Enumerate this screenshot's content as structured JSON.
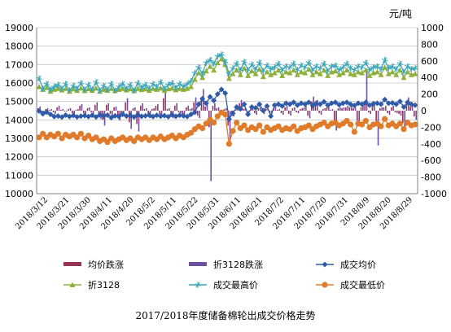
{
  "chart_data": {
    "type": "line",
    "title": "2017/2018年度储备棉轮出成交价格走势",
    "y2_unit": "元/吨",
    "xlabel": "",
    "ylabel": "",
    "ylim": [
      10000,
      19000
    ],
    "y2lim": [
      -1000,
      1000
    ],
    "y_ticks": [
      10000,
      11000,
      12000,
      13000,
      14000,
      15000,
      16000,
      17000,
      18000,
      19000
    ],
    "y2_ticks": [
      -1000,
      -800,
      -600,
      -400,
      -200,
      0,
      200,
      400,
      600,
      800,
      1000
    ],
    "x_labels": [
      "2018/3/12",
      "2018/3/21",
      "2018/3/30",
      "2018/4/11",
      "2018/4/20",
      "2018/5/2",
      "2018/5/11",
      "2018/5/22",
      "2018/5/31",
      "2018/6/11",
      "2018/6/21",
      "2018/7/2",
      "2018/7/11",
      "2018/7/20",
      "2018/7/31",
      "2018/8/9",
      "2018/8/20",
      "2018/8/29"
    ],
    "grid": true,
    "legend_position": "bottom",
    "series": [
      {
        "name": "均价跌涨",
        "type": "bar",
        "axis": "right",
        "color": "#993355",
        "values": [
          30,
          -20,
          20,
          10,
          -20,
          40,
          10,
          -10,
          20,
          -30,
          10,
          60,
          -30,
          30,
          -20,
          70,
          -70,
          -110,
          70,
          -40,
          40,
          -80,
          -30,
          100,
          -140,
          30,
          -160,
          60,
          20,
          -60,
          20,
          60,
          -40,
          150,
          20,
          -60,
          60,
          -20,
          -50,
          40,
          20,
          100,
          -60,
          160,
          50,
          -200,
          60,
          30,
          -30,
          20,
          -180,
          -50,
          10,
          90,
          20,
          -30,
          10,
          -30,
          30,
          -20,
          20,
          -30,
          30,
          10,
          -30,
          40,
          -40,
          30,
          -20,
          20,
          40,
          -60,
          110,
          80,
          -30,
          20,
          40,
          10,
          -150,
          30,
          30,
          40,
          40,
          30,
          -120,
          40,
          100,
          -20,
          70,
          -130,
          30,
          40,
          -30,
          40,
          -20,
          -40,
          -150,
          100,
          50,
          -70
        ]
      },
      {
        "name": "折3128跌涨",
        "type": "bar",
        "axis": "right",
        "color": "#7050a0",
        "values": [
          50,
          -30,
          30,
          20,
          -40,
          60,
          20,
          -10,
          30,
          -50,
          20,
          80,
          -50,
          40,
          -40,
          100,
          -100,
          -180,
          90,
          -60,
          50,
          -120,
          -50,
          150,
          -220,
          40,
          -250,
          90,
          30,
          -90,
          30,
          80,
          -60,
          230,
          30,
          -90,
          90,
          -30,
          -80,
          60,
          30,
          160,
          -90,
          260,
          80,
          -850,
          90,
          40,
          -50,
          30,
          -380,
          -70,
          20,
          130,
          30,
          -50,
          20,
          -50,
          40,
          -40,
          30,
          -40,
          40,
          20,
          -50,
          60,
          -60,
          40,
          -30,
          30,
          60,
          -90,
          170,
          130,
          -50,
          30,
          60,
          20,
          -240,
          40,
          40,
          60,
          60,
          40,
          -180,
          60,
          500,
          -40,
          110,
          -420,
          40,
          60,
          -50,
          60,
          -30,
          -60,
          -230,
          160,
          70,
          -110
        ]
      },
      {
        "name": "成交均价",
        "type": "line",
        "axis": "left",
        "color": "#2f5ba8",
        "marker": "diamond",
        "values": [
          14480,
          14330,
          14420,
          14300,
          14180,
          14210,
          14150,
          14260,
          14180,
          14240,
          14160,
          14200,
          14230,
          14180,
          14250,
          14160,
          14270,
          14200,
          14260,
          14120,
          14220,
          14180,
          14300,
          14210,
          14240,
          14160,
          14280,
          14190,
          14220,
          14260,
          14180,
          14250,
          14200,
          14230,
          14170,
          14280,
          14190,
          14250,
          14220,
          14180,
          14300,
          14410,
          14850,
          15150,
          14900,
          15250,
          15050,
          15400,
          15650,
          15450,
          14050,
          14350,
          14700,
          14600,
          14850,
          14300,
          14700,
          14650,
          14850,
          14500,
          14750,
          14200,
          14800,
          14850,
          14750,
          14900,
          14850,
          14950,
          14800,
          14900,
          14850,
          14950,
          14780,
          14900,
          14850,
          14980,
          14800,
          14900,
          14950,
          14820,
          14900,
          14950,
          14850,
          14780,
          14900,
          14850,
          14950,
          14800,
          14880,
          14900,
          14850,
          15100,
          14900,
          14920,
          14850,
          15000,
          14700,
          14950,
          14850,
          14800
        ]
      },
      {
        "name": "折3128",
        "type": "line",
        "axis": "left",
        "color": "#8fb03a",
        "marker": "triangle",
        "values": [
          15800,
          15650,
          15750,
          15550,
          15650,
          15700,
          15620,
          15700,
          15550,
          15680,
          15600,
          15720,
          15580,
          15680,
          15600,
          15720,
          15550,
          15650,
          15600,
          15700,
          15580,
          15650,
          15700,
          15620,
          15680,
          15580,
          15700,
          15640,
          15680,
          15600,
          15700,
          15650,
          15720,
          15600,
          15680,
          15720,
          15630,
          15700,
          15650,
          15700,
          15800,
          16200,
          16550,
          16300,
          16650,
          16900,
          16700,
          17100,
          17300,
          17000,
          16250,
          16500,
          16700,
          16450,
          16800,
          16400,
          16650,
          16500,
          16750,
          16350,
          16600,
          16450,
          16550,
          16700,
          16400,
          16600,
          16550,
          16700,
          16450,
          16600,
          16550,
          16750,
          16450,
          16600,
          16500,
          16700,
          16400,
          16600,
          16650,
          16450,
          16550,
          16700,
          16500,
          16450,
          16600,
          16550,
          16700,
          16400,
          16550,
          16600,
          16450,
          16850,
          16500,
          16600,
          16450,
          16700,
          16300,
          16600,
          16450,
          16500
        ]
      },
      {
        "name": "成交最高价",
        "type": "line",
        "axis": "left",
        "color": "#3aa6b8",
        "marker": "asterisk",
        "values": [
          16250,
          15700,
          15950,
          15650,
          15800,
          15900,
          15700,
          15950,
          15600,
          15850,
          15700,
          16000,
          15650,
          15900,
          15650,
          16050,
          15600,
          15850,
          15650,
          15950,
          15600,
          15800,
          15950,
          15700,
          15900,
          15600,
          16000,
          15750,
          15900,
          15700,
          15950,
          15800,
          16050,
          15700,
          15900,
          16000,
          15750,
          15950,
          15800,
          15950,
          16100,
          16550,
          16850,
          16500,
          17100,
          17250,
          17050,
          17450,
          17550,
          17150,
          16500,
          16800,
          17050,
          16700,
          17150,
          16700,
          17000,
          16750,
          17100,
          16650,
          16950,
          16750,
          16850,
          17050,
          16700,
          16900,
          16850,
          17050,
          16700,
          16950,
          16850,
          17100,
          16700,
          16900,
          16800,
          17050,
          16650,
          16900,
          16950,
          16700,
          16850,
          17050,
          16800,
          16700,
          16900,
          16850,
          17100,
          16700,
          16850,
          16900,
          16750,
          17250,
          16800,
          16900,
          16750,
          17050,
          16600,
          16900,
          16750,
          16800
        ]
      },
      {
        "name": "成交最低价",
        "type": "line",
        "axis": "left",
        "color": "#e07b2a",
        "marker": "circle",
        "values": [
          13050,
          13250,
          13050,
          13200,
          13100,
          13250,
          13000,
          13200,
          13100,
          13200,
          13050,
          13250,
          13000,
          13150,
          12950,
          13050,
          12850,
          12950,
          12800,
          13000,
          12850,
          12950,
          13050,
          12900,
          13000,
          12850,
          13050,
          12950,
          13050,
          12900,
          13050,
          12950,
          13100,
          12950,
          13050,
          13150,
          13000,
          13150,
          13050,
          13200,
          13300,
          13500,
          13650,
          13550,
          13800,
          14000,
          13850,
          14200,
          14400,
          14300,
          12700,
          13400,
          13850,
          13550,
          13700,
          13450,
          13600,
          13500,
          13700,
          13350,
          13600,
          13450,
          13550,
          13650,
          13450,
          13550,
          13500,
          13650,
          13400,
          13550,
          13600,
          13700,
          13500,
          13650,
          13750,
          13850,
          13650,
          13800,
          13850,
          13700,
          13800,
          13950,
          13750,
          13350,
          13800,
          13750,
          13950,
          13600,
          13750,
          13800,
          13650,
          14050,
          13700,
          13800,
          13650,
          13800,
          13500,
          13850,
          13700,
          13750
        ]
      }
    ]
  }
}
